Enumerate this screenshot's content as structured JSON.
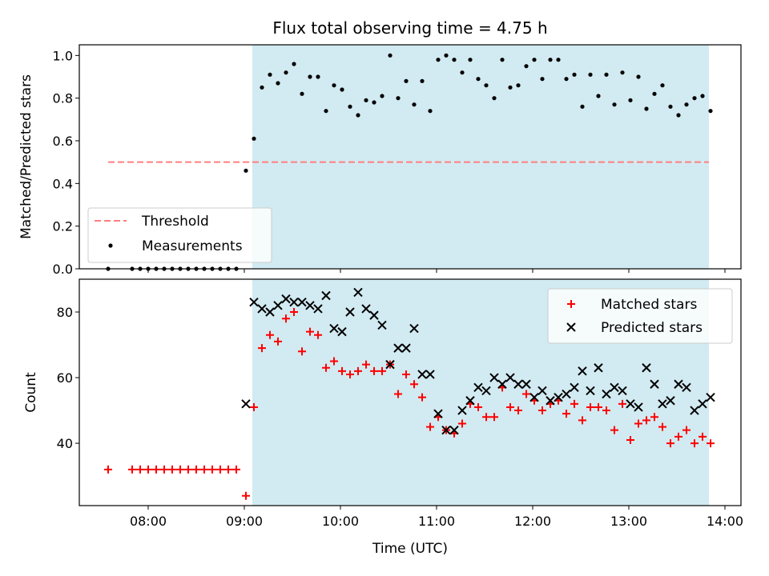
{
  "title": "Flux total observing time = 4.75 h",
  "colors": {
    "shade": "#add8e6",
    "threshold": "#ff7f7f",
    "measurement": "#000000",
    "matched": "#ff0000",
    "predicted": "#000000"
  },
  "chart_data": [
    {
      "type": "scatter",
      "xaxis": "time",
      "ylabel": "Matched/Predicted stars",
      "ylim": [
        0,
        1.05
      ],
      "yticks": [
        0.0,
        0.2,
        0.4,
        0.6,
        0.8,
        1.0
      ],
      "ytick_labels": [
        "0.0",
        "0.2",
        "0.4",
        "0.6",
        "0.8",
        "1.0"
      ],
      "xlim": [
        "07:17",
        "14:10"
      ],
      "xticks": [
        "08:00",
        "09:00",
        "10:00",
        "11:00",
        "12:00",
        "13:00",
        "14:00"
      ],
      "shaded_interval": [
        "09:05",
        "13:50"
      ],
      "legend": {
        "placement": "lower-left",
        "entries": [
          "Threshold",
          "Measurements"
        ]
      },
      "threshold": {
        "name": "Threshold",
        "value": 0.5,
        "x_range": [
          "07:35",
          "13:50"
        ],
        "style": "dashed"
      },
      "series": [
        {
          "name": "Measurements",
          "marker": "dot",
          "points": [
            [
              "07:35",
              0
            ],
            [
              "07:50",
              0
            ],
            [
              "07:55",
              0
            ],
            [
              "08:00",
              0
            ],
            [
              "08:05",
              0
            ],
            [
              "08:10",
              0
            ],
            [
              "08:15",
              0
            ],
            [
              "08:20",
              0
            ],
            [
              "08:25",
              0
            ],
            [
              "08:30",
              0
            ],
            [
              "08:35",
              0
            ],
            [
              "08:40",
              0
            ],
            [
              "08:45",
              0
            ],
            [
              "08:50",
              0
            ],
            [
              "08:55",
              0
            ],
            [
              "09:01",
              0.46
            ],
            [
              "09:06",
              0.61
            ],
            [
              "09:11",
              0.85
            ],
            [
              "09:16",
              0.91
            ],
            [
              "09:21",
              0.87
            ],
            [
              "09:26",
              0.92
            ],
            [
              "09:31",
              0.96
            ],
            [
              "09:36",
              0.82
            ],
            [
              "09:41",
              0.9
            ],
            [
              "09:46",
              0.9
            ],
            [
              "09:51",
              0.74
            ],
            [
              "09:56",
              0.86
            ],
            [
              "10:01",
              0.84
            ],
            [
              "10:06",
              0.76
            ],
            [
              "10:11",
              0.72
            ],
            [
              "10:16",
              0.79
            ],
            [
              "10:21",
              0.78
            ],
            [
              "10:26",
              0.81
            ],
            [
              "10:31",
              1.0
            ],
            [
              "10:36",
              0.8
            ],
            [
              "10:41",
              0.88
            ],
            [
              "10:46",
              0.77
            ],
            [
              "10:51",
              0.88
            ],
            [
              "10:56",
              0.74
            ],
            [
              "11:01",
              0.98
            ],
            [
              "11:06",
              1.0
            ],
            [
              "11:11",
              0.98
            ],
            [
              "11:16",
              0.92
            ],
            [
              "11:21",
              0.98
            ],
            [
              "11:26",
              0.89
            ],
            [
              "11:31",
              0.86
            ],
            [
              "11:36",
              0.8
            ],
            [
              "11:41",
              0.98
            ],
            [
              "11:46",
              0.85
            ],
            [
              "11:51",
              0.86
            ],
            [
              "11:56",
              0.95
            ],
            [
              "12:01",
              0.98
            ],
            [
              "12:06",
              0.89
            ],
            [
              "12:11",
              0.98
            ],
            [
              "12:16",
              0.98
            ],
            [
              "12:21",
              0.89
            ],
            [
              "12:26",
              0.91
            ],
            [
              "12:31",
              0.76
            ],
            [
              "12:36",
              0.91
            ],
            [
              "12:41",
              0.81
            ],
            [
              "12:46",
              0.91
            ],
            [
              "12:51",
              0.77
            ],
            [
              "12:56",
              0.92
            ],
            [
              "13:01",
              0.79
            ],
            [
              "13:06",
              0.9
            ],
            [
              "13:11",
              0.75
            ],
            [
              "13:16",
              0.82
            ],
            [
              "13:21",
              0.86
            ],
            [
              "13:26",
              0.76
            ],
            [
              "13:31",
              0.72
            ],
            [
              "13:36",
              0.77
            ],
            [
              "13:41",
              0.8
            ],
            [
              "13:46",
              0.81
            ],
            [
              "13:51",
              0.74
            ]
          ]
        }
      ]
    },
    {
      "type": "scatter",
      "xaxis": "time",
      "xlabel": "Time (UTC)",
      "ylabel": "Count",
      "ylim": [
        21,
        90
      ],
      "yticks": [
        40,
        60,
        80
      ],
      "ytick_labels": [
        "40",
        "60",
        "80"
      ],
      "xlim": [
        "07:17",
        "14:10"
      ],
      "xticks": [
        "08:00",
        "09:00",
        "10:00",
        "11:00",
        "12:00",
        "13:00",
        "14:00"
      ],
      "xtick_labels": [
        "08:00",
        "09:00",
        "10:00",
        "11:00",
        "12:00",
        "13:00",
        "14:00"
      ],
      "shaded_interval": [
        "09:05",
        "13:50"
      ],
      "legend": {
        "placement": "top-right",
        "entries": [
          "Matched stars",
          "Predicted stars"
        ]
      },
      "series": [
        {
          "name": "Matched stars",
          "marker": "plus",
          "points": [
            [
              "07:35",
              32
            ],
            [
              "07:50",
              32
            ],
            [
              "07:55",
              32
            ],
            [
              "08:00",
              32
            ],
            [
              "08:05",
              32
            ],
            [
              "08:10",
              32
            ],
            [
              "08:15",
              32
            ],
            [
              "08:20",
              32
            ],
            [
              "08:25",
              32
            ],
            [
              "08:30",
              32
            ],
            [
              "08:35",
              32
            ],
            [
              "08:40",
              32
            ],
            [
              "08:45",
              32
            ],
            [
              "08:50",
              32
            ],
            [
              "08:55",
              32
            ],
            [
              "09:01",
              24
            ],
            [
              "09:06",
              51
            ],
            [
              "09:11",
              69
            ],
            [
              "09:16",
              73
            ],
            [
              "09:21",
              71
            ],
            [
              "09:26",
              78
            ],
            [
              "09:31",
              80
            ],
            [
              "09:36",
              68
            ],
            [
              "09:41",
              74
            ],
            [
              "09:46",
              73
            ],
            [
              "09:51",
              63
            ],
            [
              "09:56",
              65
            ],
            [
              "10:01",
              62
            ],
            [
              "10:06",
              61
            ],
            [
              "10:11",
              62
            ],
            [
              "10:16",
              64
            ],
            [
              "10:21",
              62
            ],
            [
              "10:26",
              62
            ],
            [
              "10:31",
              64
            ],
            [
              "10:36",
              55
            ],
            [
              "10:41",
              61
            ],
            [
              "10:46",
              58
            ],
            [
              "10:51",
              54
            ],
            [
              "10:56",
              45
            ],
            [
              "11:01",
              48
            ],
            [
              "11:06",
              44
            ],
            [
              "11:11",
              43
            ],
            [
              "11:16",
              46
            ],
            [
              "11:21",
              52
            ],
            [
              "11:26",
              51
            ],
            [
              "11:31",
              48
            ],
            [
              "11:36",
              48
            ],
            [
              "11:41",
              57
            ],
            [
              "11:46",
              51
            ],
            [
              "11:51",
              50
            ],
            [
              "11:56",
              55
            ],
            [
              "12:01",
              53
            ],
            [
              "12:06",
              50
            ],
            [
              "12:11",
              52
            ],
            [
              "12:16",
              53
            ],
            [
              "12:21",
              49
            ],
            [
              "12:26",
              52
            ],
            [
              "12:31",
              47
            ],
            [
              "12:36",
              51
            ],
            [
              "12:41",
              51
            ],
            [
              "12:46",
              50
            ],
            [
              "12:51",
              44
            ],
            [
              "12:56",
              52
            ],
            [
              "13:01",
              41
            ],
            [
              "13:06",
              46
            ],
            [
              "13:11",
              47
            ],
            [
              "13:16",
              48
            ],
            [
              "13:21",
              45
            ],
            [
              "13:26",
              40
            ],
            [
              "13:31",
              42
            ],
            [
              "13:36",
              44
            ],
            [
              "13:41",
              40
            ],
            [
              "13:46",
              42
            ],
            [
              "13:51",
              40
            ]
          ]
        },
        {
          "name": "Predicted stars",
          "marker": "x",
          "points": [
            [
              "09:01",
              52
            ],
            [
              "09:06",
              83
            ],
            [
              "09:11",
              81
            ],
            [
              "09:16",
              80
            ],
            [
              "09:21",
              82
            ],
            [
              "09:26",
              84
            ],
            [
              "09:31",
              83
            ],
            [
              "09:36",
              83
            ],
            [
              "09:41",
              82
            ],
            [
              "09:46",
              81
            ],
            [
              "09:51",
              85
            ],
            [
              "09:56",
              75
            ],
            [
              "10:01",
              74
            ],
            [
              "10:06",
              80
            ],
            [
              "10:11",
              86
            ],
            [
              "10:16",
              81
            ],
            [
              "10:21",
              79
            ],
            [
              "10:26",
              76
            ],
            [
              "10:31",
              64
            ],
            [
              "10:36",
              69
            ],
            [
              "10:41",
              69
            ],
            [
              "10:46",
              75
            ],
            [
              "10:51",
              61
            ],
            [
              "10:56",
              61
            ],
            [
              "11:01",
              49
            ],
            [
              "11:06",
              44
            ],
            [
              "11:11",
              44
            ],
            [
              "11:16",
              50
            ],
            [
              "11:21",
              53
            ],
            [
              "11:26",
              57
            ],
            [
              "11:31",
              56
            ],
            [
              "11:36",
              60
            ],
            [
              "11:41",
              58
            ],
            [
              "11:46",
              60
            ],
            [
              "11:51",
              58
            ],
            [
              "11:56",
              58
            ],
            [
              "12:01",
              54
            ],
            [
              "12:06",
              56
            ],
            [
              "12:11",
              53
            ],
            [
              "12:16",
              54
            ],
            [
              "12:21",
              55
            ],
            [
              "12:26",
              57
            ],
            [
              "12:31",
              62
            ],
            [
              "12:36",
              56
            ],
            [
              "12:41",
              63
            ],
            [
              "12:46",
              55
            ],
            [
              "12:51",
              57
            ],
            [
              "12:56",
              56
            ],
            [
              "13:01",
              52
            ],
            [
              "13:06",
              51
            ],
            [
              "13:11",
              63
            ],
            [
              "13:16",
              58
            ],
            [
              "13:21",
              52
            ],
            [
              "13:26",
              53
            ],
            [
              "13:31",
              58
            ],
            [
              "13:36",
              57
            ],
            [
              "13:41",
              50
            ],
            [
              "13:46",
              52
            ],
            [
              "13:51",
              54
            ]
          ]
        }
      ]
    }
  ]
}
